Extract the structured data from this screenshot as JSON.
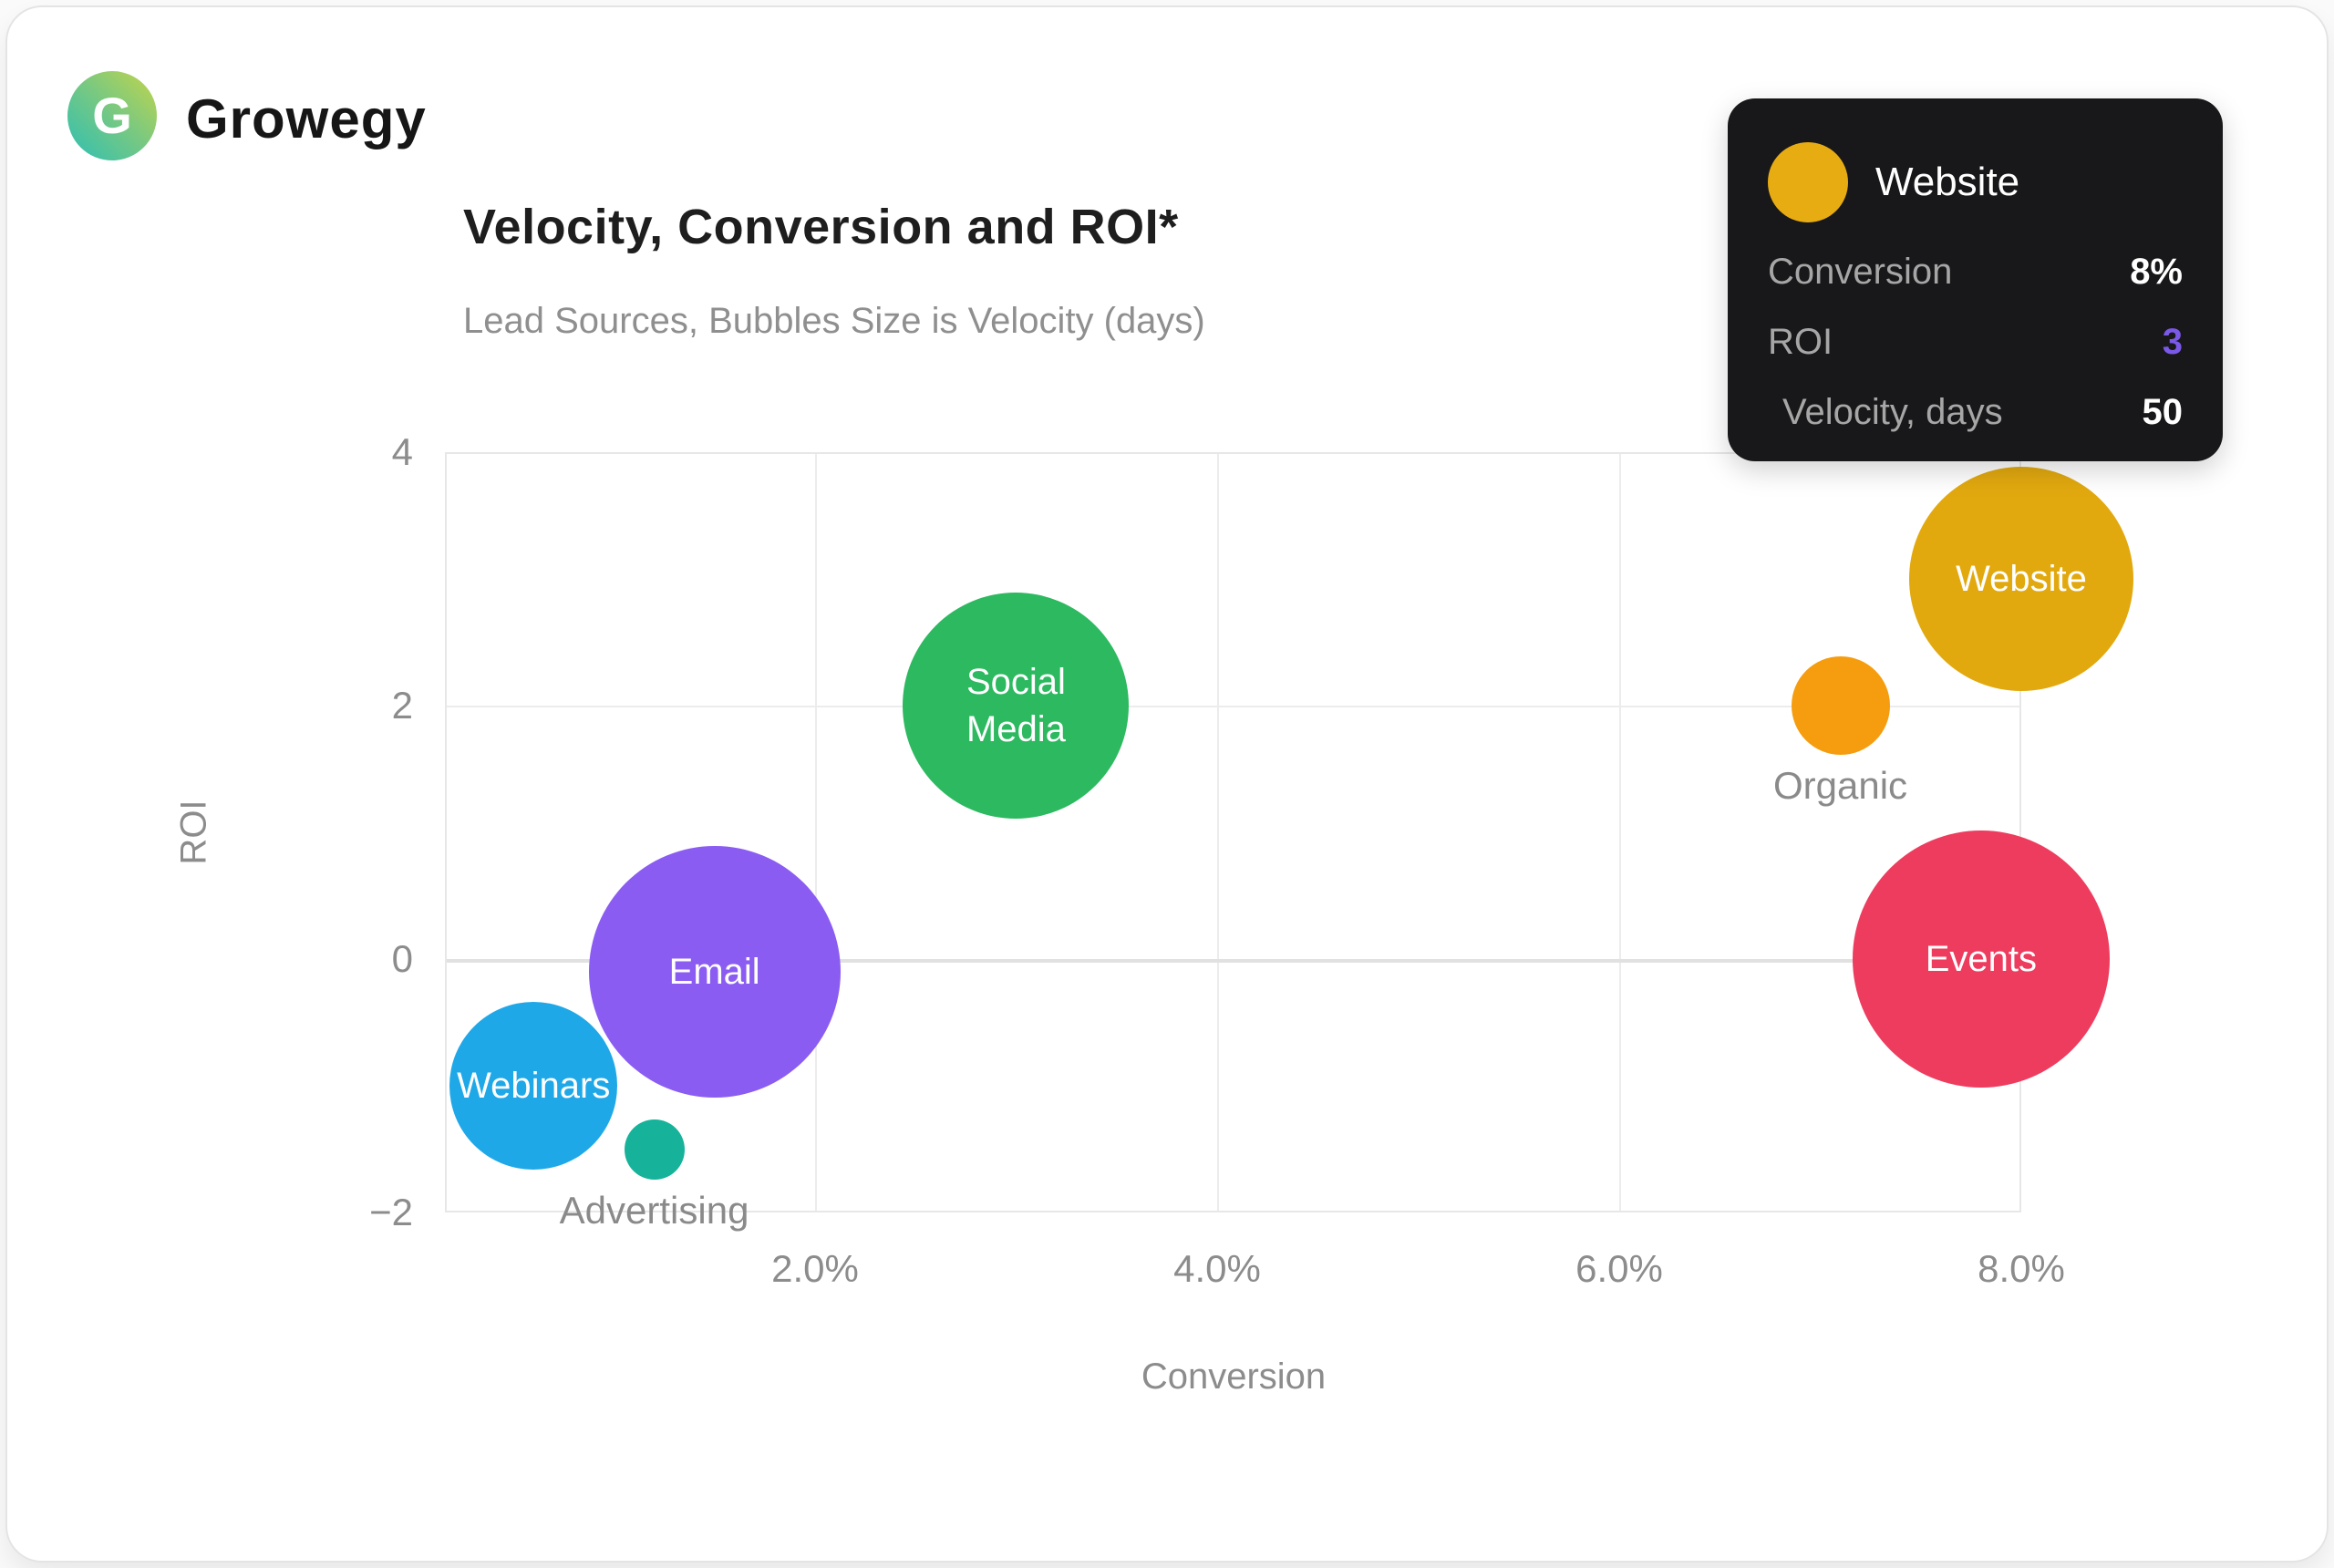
{
  "brand": {
    "name": "Growegy",
    "logo_letter": "G"
  },
  "chart": {
    "title": "Velocity, Conversion and ROI*",
    "subtitle": "Lead Sources, Bubbles Size is Velocity (days)",
    "x_axis": {
      "label": "Conversion",
      "ticks": [
        "2.0%",
        "4.0%",
        "6.0%",
        "8.0%"
      ]
    },
    "y_axis": {
      "label": "ROI",
      "ticks": [
        "4",
        "2",
        "0",
        "−2"
      ]
    }
  },
  "tooltip": {
    "series": "Website",
    "marker_color": "#e8ac13",
    "rows": [
      {
        "label": "Conversion",
        "value": "8%"
      },
      {
        "label": "ROI",
        "value": "3"
      },
      {
        "label": "Velocity, days",
        "value": "50"
      }
    ]
  },
  "chart_data": {
    "type": "scatter",
    "subtype": "bubble",
    "title": "Velocity, Conversion and ROI*",
    "subtitle": "Lead Sources, Bubbles Size is Velocity (days)",
    "xlabel": "Conversion",
    "ylabel": "ROI",
    "x_ticks_pct": [
      2.0,
      4.0,
      6.0,
      8.0
    ],
    "xlim_pct": [
      0.159,
      8.0
    ],
    "ylim": [
      -2,
      4
    ],
    "grid": true,
    "legend": false,
    "bubble_size_meaning": "Velocity (days)",
    "points": [
      {
        "name": "Social Media",
        "conversion_pct": 3.0,
        "roi": 2,
        "velocity_days": 50,
        "velocity_estimated": true,
        "radius_px": 124,
        "color": "#2cb95f",
        "label_placement": "inside"
      },
      {
        "name": "Website",
        "conversion_pct": 8.0,
        "roi": 3,
        "velocity_days": 50,
        "velocity_estimated": false,
        "radius_px": 123,
        "color": "#e2a90f",
        "label_placement": "inside"
      },
      {
        "name": "Organic",
        "conversion_pct": 7.1,
        "roi": 2,
        "velocity_days": 22,
        "velocity_estimated": true,
        "radius_px": 54,
        "color": "#f59d0e",
        "label_placement": "below"
      },
      {
        "name": "Events",
        "conversion_pct": 7.8,
        "roi": 0,
        "velocity_days": 57,
        "velocity_estimated": true,
        "radius_px": 141,
        "color": "#ee3c5e",
        "label_placement": "inside"
      },
      {
        "name": "Webinars",
        "conversion_pct": 0.6,
        "roi": -1,
        "velocity_days": 37,
        "velocity_estimated": true,
        "radius_px": 92,
        "color": "#1fa8e8",
        "label_placement": "inside"
      },
      {
        "name": "Email",
        "conversion_pct": 1.5,
        "roi": -0.1,
        "velocity_days": 56,
        "velocity_estimated": true,
        "radius_px": 138,
        "color": "#8b5cf2",
        "label_placement": "inside"
      },
      {
        "name": "Advertising",
        "conversion_pct": 1.2,
        "roi": -1.5,
        "velocity_days": 13,
        "velocity_estimated": true,
        "radius_px": 33,
        "color": "#16b39a",
        "label_placement": "below"
      }
    ]
  }
}
